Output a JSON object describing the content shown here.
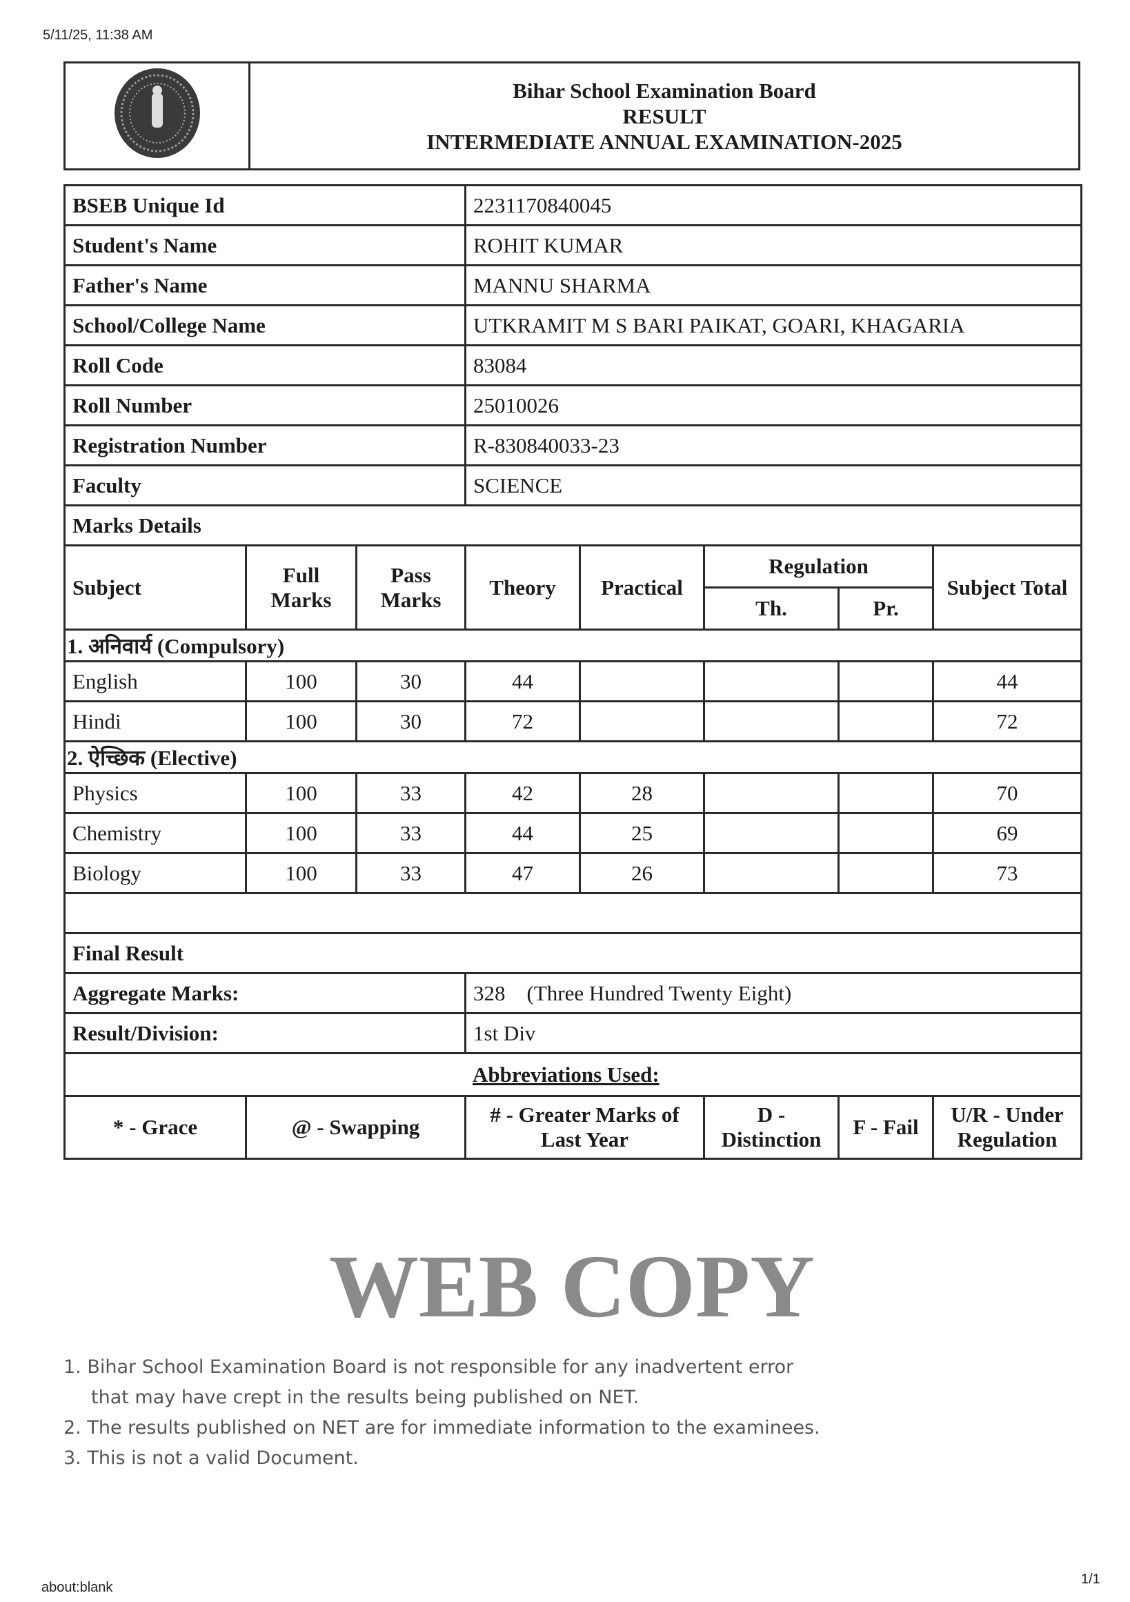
{
  "browser": {
    "timestamp": "5/11/25, 11:38 AM",
    "url": "about:blank",
    "page": "1/1"
  },
  "header": {
    "board": "Bihar School Examination Board",
    "doc_type": "RESULT",
    "exam": "INTERMEDIATE ANNUAL EXAMINATION-2025",
    "logo_icon": "bseb-seal-icon"
  },
  "info": [
    {
      "label": "BSEB Unique Id",
      "value": "2231170840045"
    },
    {
      "label": "Student's Name",
      "value": "ROHIT KUMAR"
    },
    {
      "label": "Father's Name",
      "value": "MANNU SHARMA"
    },
    {
      "label": "School/College Name",
      "value": "UTKRAMIT M S BARI PAIKAT, GOARI, KHAGARIA"
    },
    {
      "label": "Roll Code",
      "value": "83084"
    },
    {
      "label": "Roll Number",
      "value": "25010026"
    },
    {
      "label": "Registration Number",
      "value": "R-830840033-23"
    },
    {
      "label": "Faculty",
      "value": "SCIENCE"
    }
  ],
  "marks": {
    "title": "Marks Details",
    "headers": {
      "subject": "Subject",
      "full": "Full Marks",
      "pass": "Pass Marks",
      "theory": "Theory",
      "practical": "Practical",
      "regulation": "Regulation",
      "reg_th": "Th.",
      "reg_pr": "Pr.",
      "total": "Subject Total"
    },
    "sections": [
      {
        "title": "1. अनिवार्य (Compulsory)",
        "rows": [
          {
            "subject": "English",
            "full": "100",
            "pass": "30",
            "theory": "44",
            "practical": "",
            "th": "",
            "pr": "",
            "total": "44"
          },
          {
            "subject": "Hindi",
            "full": "100",
            "pass": "30",
            "theory": "72",
            "practical": "",
            "th": "",
            "pr": "",
            "total": "72"
          }
        ]
      },
      {
        "title": "2. ऐच्छिक (Elective)",
        "rows": [
          {
            "subject": "Physics",
            "full": "100",
            "pass": "33",
            "theory": "42",
            "practical": "28",
            "th": "",
            "pr": "",
            "total": "70"
          },
          {
            "subject": "Chemistry",
            "full": "100",
            "pass": "33",
            "theory": "44",
            "practical": "25",
            "th": "",
            "pr": "",
            "total": "69"
          },
          {
            "subject": "Biology",
            "full": "100",
            "pass": "33",
            "theory": "47",
            "practical": "26",
            "th": "",
            "pr": "",
            "total": "73"
          }
        ]
      }
    ]
  },
  "final": {
    "title": "Final Result",
    "aggregate_label": "Aggregate Marks:",
    "aggregate_value": "328",
    "aggregate_words": "(Three Hundred Twenty Eight)",
    "division_label": "Result/Division:",
    "division_value": "1st Div"
  },
  "abbreviations": {
    "title": "Abbreviations Used:",
    "items": [
      "* - Grace",
      "@ - Swapping",
      "# - Greater Marks of Last Year",
      "D - Distinction",
      "F - Fail",
      "U/R - Under Regulation"
    ]
  },
  "watermark": {
    "big": "WEB COPY",
    "lines": [
      "1. Bihar School Examination Board is not responsible for any inadvertent error",
      "that may have crept in the results being published on NET.",
      "2. The results published on NET are for immediate information to the examinees.",
      "3. This is not a valid Document."
    ]
  }
}
